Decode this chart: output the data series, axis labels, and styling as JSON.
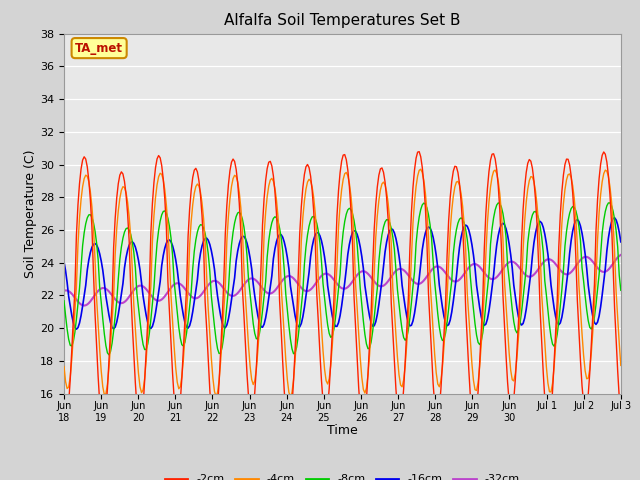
{
  "title": "Alfalfa Soil Temperatures Set B",
  "xlabel": "Time",
  "ylabel": "Soil Temperature (C)",
  "ylim": [
    16,
    38
  ],
  "yticks": [
    16,
    18,
    20,
    22,
    24,
    26,
    28,
    30,
    32,
    34,
    36,
    38
  ],
  "fig_bg_color": "#d4d4d4",
  "plot_bg_color": "#e8e8e8",
  "colors": {
    "-2cm": "#ff2200",
    "-4cm": "#ff8800",
    "-8cm": "#00cc00",
    "-16cm": "#0000ee",
    "-32cm": "#bb44cc"
  },
  "legend_label": "TA_met",
  "legend_box_color": "#ffff99",
  "legend_box_edge": "#cc8800",
  "tick_labels": [
    "Jun\n18",
    "Jun\n19",
    "Jun\n20",
    "Jun\n21",
    "Jun\n22",
    "Jun\n23",
    "Jun\n24",
    "Jun\n25",
    "Jun\n26",
    "Jun\n27",
    "Jun\n28",
    "Jun\n29",
    "Jun\n30",
    "Jul 1",
    "Jul 2",
    "Jul 3"
  ]
}
